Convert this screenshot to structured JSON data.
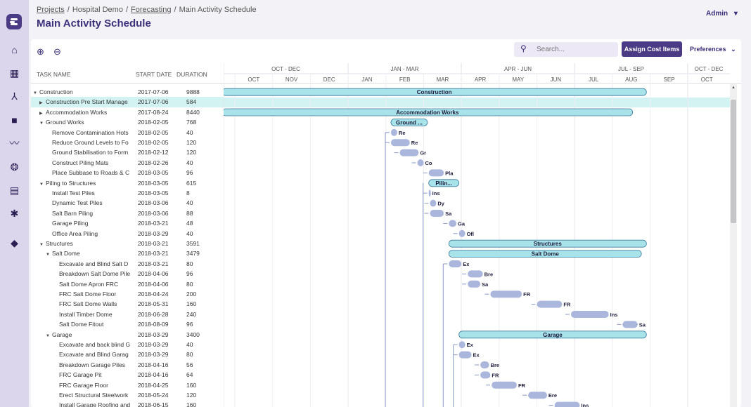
{
  "breadcrumbs": {
    "projects": "Projects",
    "hospital": "Hospital Demo",
    "forecasting": "Forecasting",
    "current": "Main Activity Schedule",
    "sep": "/"
  },
  "page_title": "Main Activity Schedule",
  "user": {
    "name": "Admin",
    "caret": "▾"
  },
  "toolbar": {
    "zoom_in_icon": "⊕",
    "zoom_out_icon": "⊖",
    "search_placeholder": "Search...",
    "assign_label": "Assign Cost Items",
    "preferences_label": "Preferences",
    "preferences_caret": "⌄"
  },
  "nav": [
    "home-icon",
    "grid-icon",
    "walk-icon",
    "bag-icon",
    "trend-icon",
    "aperture-icon",
    "report-icon",
    "gear-icon",
    "box-icon"
  ],
  "columns": {
    "task": "TASK NAME",
    "start": "START DATE",
    "duration": "DURATION"
  },
  "timeline": {
    "quarters": [
      "OCT - DEC",
      "JAN - MAR",
      "APR - JUN",
      "JUL - SEP",
      "OCT - DEC"
    ],
    "months": [
      "OCT",
      "NOV",
      "DEC",
      "JAN",
      "FEB",
      "MAR",
      "APR",
      "MAY",
      "JUN",
      "JUL",
      "AUG",
      "SEP",
      "OCT"
    ]
  },
  "rows": [
    {
      "name": "Construction",
      "start": "2017-07-06",
      "duration": "9888",
      "level": 0,
      "caret": "▼",
      "bar": "Construction"
    },
    {
      "name": "Construction Pre Start Manage",
      "start": "2017-07-06",
      "duration": "584",
      "level": 1,
      "caret": "▶",
      "selected": true
    },
    {
      "name": "Accommodation Works",
      "start": "2017-08-24",
      "duration": "8440",
      "level": 1,
      "caret": "▶",
      "bar": "Accommodation Works"
    },
    {
      "name": "Ground Works",
      "start": "2018-02-05",
      "duration": "768",
      "level": 1,
      "caret": "▼",
      "bar": "Ground ..."
    },
    {
      "name": "Remove Contamination Hots",
      "start": "2018-02-05",
      "duration": "40",
      "level": 2,
      "label": "Re"
    },
    {
      "name": "Reduce Ground Levels to Fo",
      "start": "2018-02-05",
      "duration": "120",
      "level": 2,
      "label": "Re"
    },
    {
      "name": "Ground Stabilisation to Form",
      "start": "2018-02-12",
      "duration": "120",
      "level": 2,
      "label": "Gr"
    },
    {
      "name": "Construct Piling Mats",
      "start": "2018-02-26",
      "duration": "40",
      "level": 2,
      "label": "Co"
    },
    {
      "name": "Place Subbase to Roads & C",
      "start": "2018-03-05",
      "duration": "96",
      "level": 2,
      "label": "Pla"
    },
    {
      "name": "Piling to Structures",
      "start": "2018-03-05",
      "duration": "615",
      "level": 1,
      "caret": "▼",
      "bar": "Pilin..."
    },
    {
      "name": "Install Test Piles",
      "start": "2018-03-05",
      "duration": "8",
      "level": 2,
      "label": "Ins"
    },
    {
      "name": "Dynamic Test Piles",
      "start": "2018-03-06",
      "duration": "40",
      "level": 2,
      "label": "Dy"
    },
    {
      "name": "Salt Barn Piling",
      "start": "2018-03-06",
      "duration": "88",
      "level": 2,
      "label": "Sa"
    },
    {
      "name": "Garage Piling",
      "start": "2018-03-21",
      "duration": "48",
      "level": 2,
      "label": "Ga"
    },
    {
      "name": "Office Area Piling",
      "start": "2018-03-29",
      "duration": "40",
      "level": 2,
      "label": "Ofl"
    },
    {
      "name": "Structures",
      "start": "2018-03-21",
      "duration": "3591",
      "level": 1,
      "caret": "▼",
      "bar": "Structures"
    },
    {
      "name": "Salt Dome",
      "start": "2018-03-21",
      "duration": "3479",
      "level": 2,
      "caret": "▼",
      "bar": "Salt Dome"
    },
    {
      "name": "Excavate and Blind Salt D",
      "start": "2018-03-21",
      "duration": "80",
      "level": 3,
      "label": "Ex"
    },
    {
      "name": "Breakdown Salt Dome Pile",
      "start": "2018-04-06",
      "duration": "96",
      "level": 3,
      "label": "Bre"
    },
    {
      "name": "Salt Dome Apron FRC",
      "start": "2018-04-06",
      "duration": "80",
      "level": 3,
      "label": "Sa"
    },
    {
      "name": "FRC Salt Dome Floor",
      "start": "2018-04-24",
      "duration": "200",
      "level": 3,
      "label": "FR"
    },
    {
      "name": "FRC Salt Dome Walls",
      "start": "2018-05-31",
      "duration": "160",
      "level": 3,
      "label": "FR"
    },
    {
      "name": "Install Timber Dome",
      "start": "2018-06-28",
      "duration": "240",
      "level": 3,
      "label": "Ins"
    },
    {
      "name": "Salt Dome Fitout",
      "start": "2018-08-09",
      "duration": "96",
      "level": 3,
      "label": "Sa"
    },
    {
      "name": "Garage",
      "start": "2018-03-29",
      "duration": "3400",
      "level": 2,
      "caret": "▼",
      "bar": "Garage"
    },
    {
      "name": "Excavate and back blind G",
      "start": "2018-03-29",
      "duration": "40",
      "level": 3,
      "label": "Ex"
    },
    {
      "name": "Excavate and Blind Garag",
      "start": "2018-03-29",
      "duration": "80",
      "level": 3,
      "label": "Ex"
    },
    {
      "name": "Breakdown Garage Piles",
      "start": "2018-04-16",
      "duration": "56",
      "level": 3,
      "label": "Bre"
    },
    {
      "name": "FRC Garage Pit",
      "start": "2018-04-16",
      "duration": "64",
      "level": 3,
      "label": "FR"
    },
    {
      "name": "FRC Garage Floor",
      "start": "2018-04-25",
      "duration": "160",
      "level": 3,
      "label": "FR"
    },
    {
      "name": "Erect Structural Steelwork",
      "start": "2018-05-24",
      "duration": "120",
      "level": 3,
      "label": "Ere"
    },
    {
      "name": "Install Garage Roofing and",
      "start": "2018-06-15",
      "duration": "160",
      "level": 3,
      "label": "Ins"
    }
  ]
}
